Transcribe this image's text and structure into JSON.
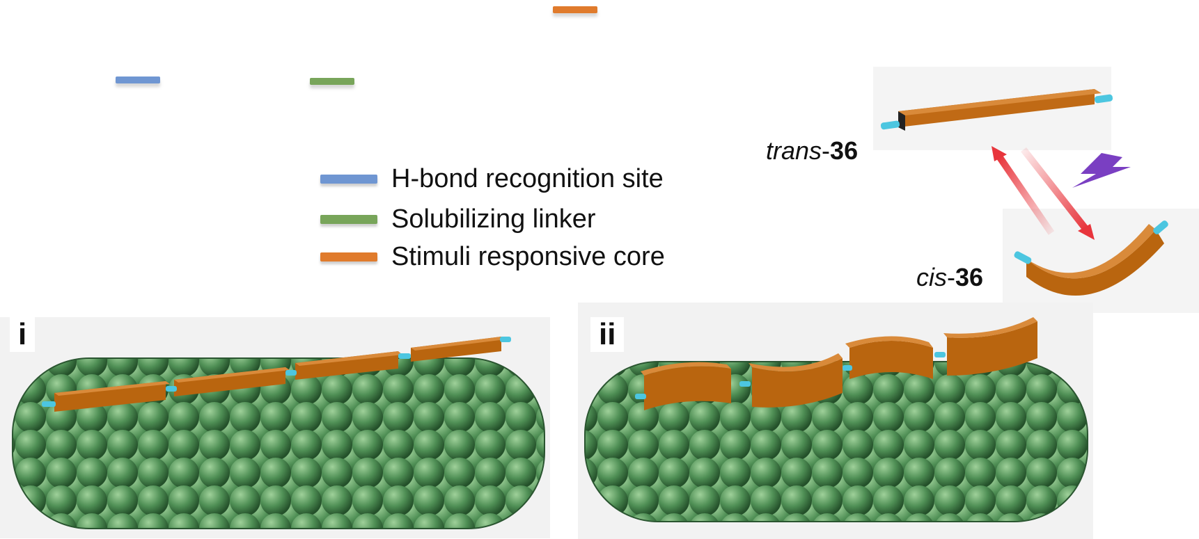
{
  "colors": {
    "h_bond_site": "#6f96d2",
    "solubilizing_linker": "#78a55a",
    "stimuli_core": "#e07b2c",
    "core_3d": "#b9650f",
    "linker_cyan": "#4cc6e0",
    "fiber_green": "#4f8f55",
    "arrow_red": "#e8353c",
    "light_purple": "#7a3fc2"
  },
  "legend": {
    "items": [
      {
        "label": "H-bond recognition site",
        "color": "#6f96d2"
      },
      {
        "label": "Solubilizing linker",
        "color": "#78a55a"
      },
      {
        "label": "Stimuli responsive core",
        "color": "#e07b2c"
      }
    ]
  },
  "molecules": {
    "trans": {
      "prefix": "trans",
      "number": "36"
    },
    "cis": {
      "prefix": "cis",
      "number": "36"
    }
  },
  "panels": {
    "i": {
      "label": "i"
    },
    "ii": {
      "label": "ii"
    }
  },
  "icons": [
    "lightning-icon",
    "equilibrium-arrow-icon"
  ]
}
